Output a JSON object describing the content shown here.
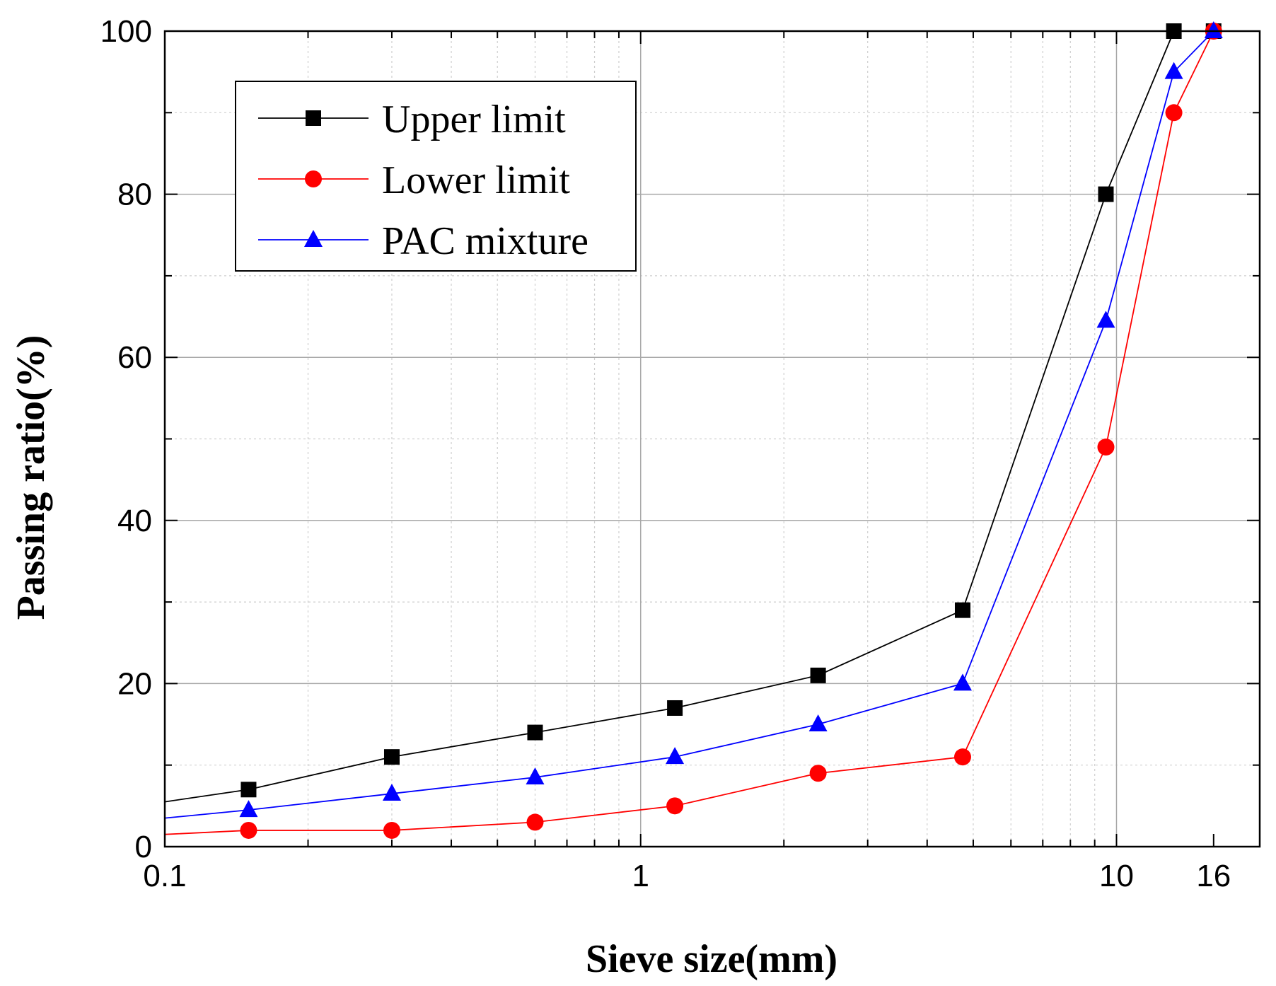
{
  "chart_data": {
    "type": "line",
    "title": "",
    "xlabel": "Sieve size(mm)",
    "ylabel": "Passing ratio(%)",
    "xscale": "log",
    "xlim": [
      0.1,
      20
    ],
    "ylim": [
      0,
      100
    ],
    "grid": true,
    "legend_position": "top-left",
    "x_ticks": [
      {
        "value": 0.1,
        "label": "0.1"
      },
      {
        "value": 1,
        "label": "1"
      },
      {
        "value": 10,
        "label": "10"
      },
      {
        "value": 16,
        "label": "16"
      }
    ],
    "y_ticks": [
      {
        "value": 0,
        "label": "0"
      },
      {
        "value": 20,
        "label": "20"
      },
      {
        "value": 40,
        "label": "40"
      },
      {
        "value": 60,
        "label": "60"
      },
      {
        "value": 80,
        "label": "80"
      },
      {
        "value": 100,
        "label": "100"
      }
    ],
    "x": [
      0.15,
      0.3,
      0.6,
      1.18,
      2.36,
      4.75,
      9.5,
      13.2,
      16
    ],
    "series": [
      {
        "name": "Upper limit",
        "color": "#000000",
        "marker": "square",
        "line_start": [
          0.1,
          5.5
        ],
        "values": [
          7,
          11,
          14,
          17,
          21,
          29,
          80,
          100,
          100
        ]
      },
      {
        "name": "Lower limit",
        "color": "#ff0000",
        "marker": "circle",
        "line_start": [
          0.1,
          1.5
        ],
        "values": [
          2,
          2,
          3,
          5,
          9,
          11,
          49,
          90,
          100
        ]
      },
      {
        "name": "PAC mixture",
        "color": "#0000ff",
        "marker": "triangle",
        "line_start": [
          0.1,
          3.5
        ],
        "values": [
          4.5,
          6.5,
          8.5,
          11,
          15,
          20,
          64.5,
          95,
          100
        ]
      }
    ]
  }
}
